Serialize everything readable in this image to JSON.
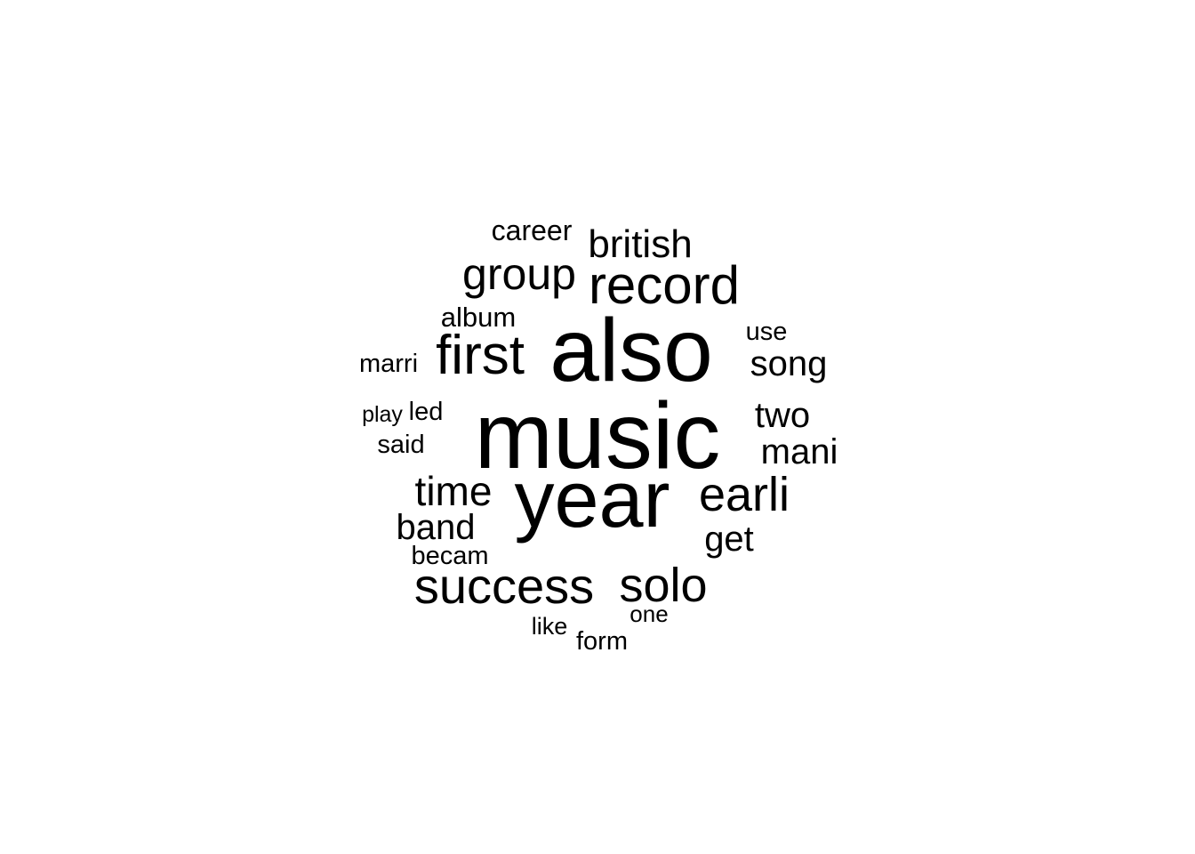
{
  "chart_data": {
    "type": "wordcloud",
    "words": [
      {
        "text": "music"
      },
      {
        "text": "also"
      },
      {
        "text": "year"
      },
      {
        "text": "record"
      },
      {
        "text": "first"
      },
      {
        "text": "success"
      },
      {
        "text": "earli"
      },
      {
        "text": "solo"
      },
      {
        "text": "group"
      },
      {
        "text": "time"
      },
      {
        "text": "british"
      },
      {
        "text": "mani"
      },
      {
        "text": "song"
      },
      {
        "text": "band"
      },
      {
        "text": "two"
      },
      {
        "text": "get"
      },
      {
        "text": "career"
      },
      {
        "text": "album"
      },
      {
        "text": "use"
      },
      {
        "text": "marri"
      },
      {
        "text": "said"
      },
      {
        "text": "led"
      },
      {
        "text": "play"
      },
      {
        "text": "becam"
      },
      {
        "text": "form"
      },
      {
        "text": "one"
      },
      {
        "text": "like"
      }
    ],
    "color": "#000000",
    "background": "#ffffff"
  }
}
